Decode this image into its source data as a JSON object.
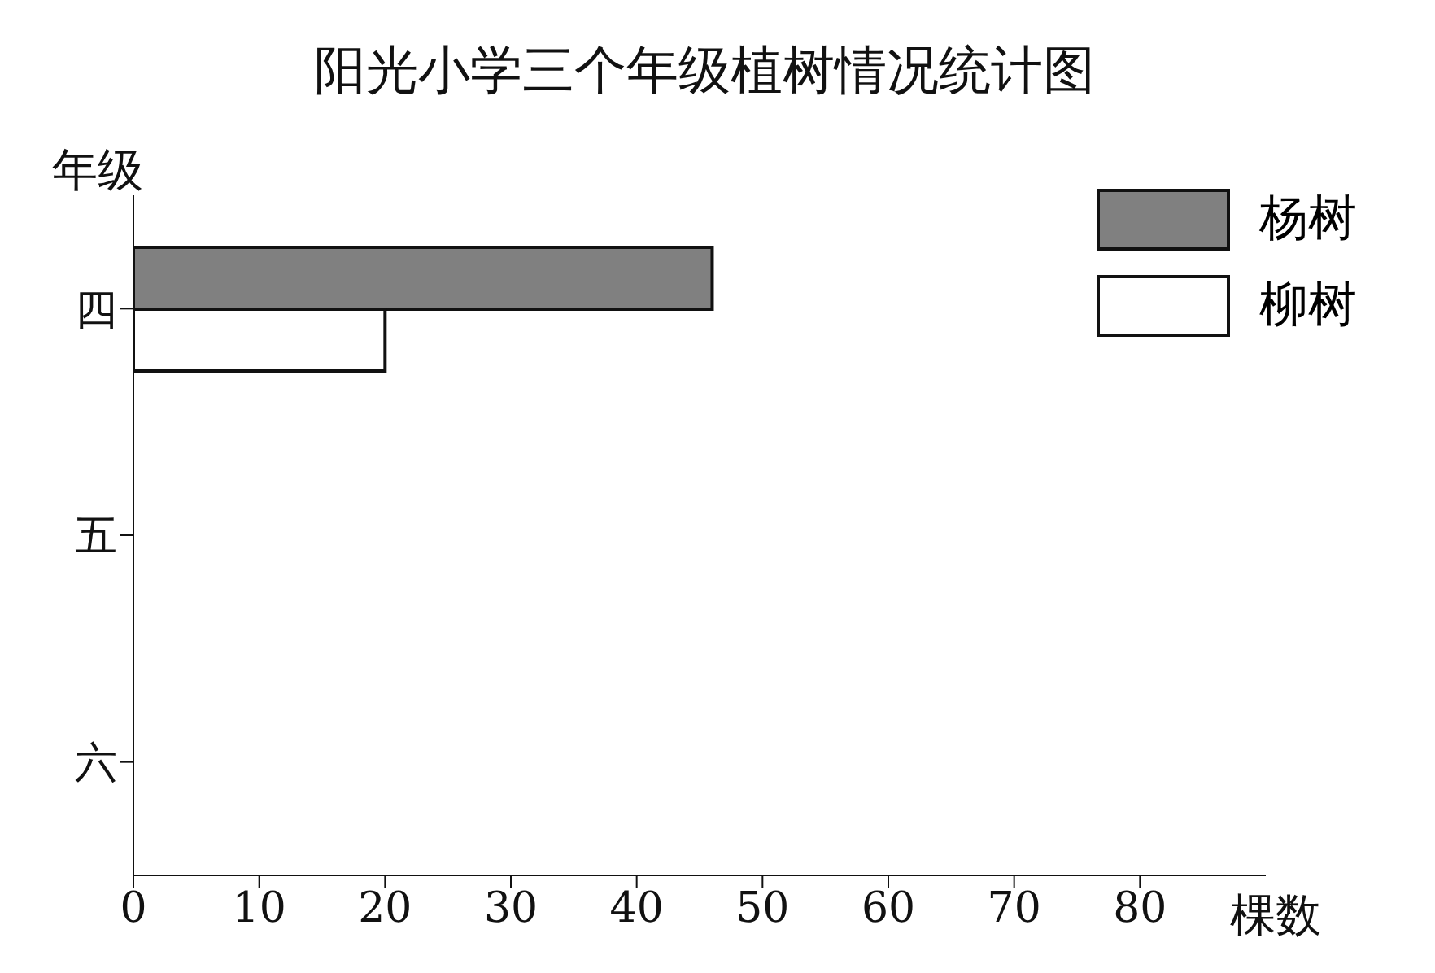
{
  "chart_data": {
    "type": "bar",
    "orientation": "horizontal",
    "title": "阳光小学三个年级植树情况统计图",
    "xlabel": "棵数",
    "ylabel": "年级",
    "categories": [
      "四",
      "五",
      "六"
    ],
    "series": [
      {
        "name": "杨树",
        "color": "#808080",
        "values": [
          46,
          null,
          null
        ]
      },
      {
        "name": "柳树",
        "color": "#ffffff",
        "values": [
          20,
          null,
          null
        ]
      }
    ],
    "xlim": [
      0,
      90
    ],
    "xticks": [
      0,
      10,
      20,
      30,
      40,
      50,
      60,
      70,
      80
    ],
    "grid": false,
    "legend": "top right"
  }
}
